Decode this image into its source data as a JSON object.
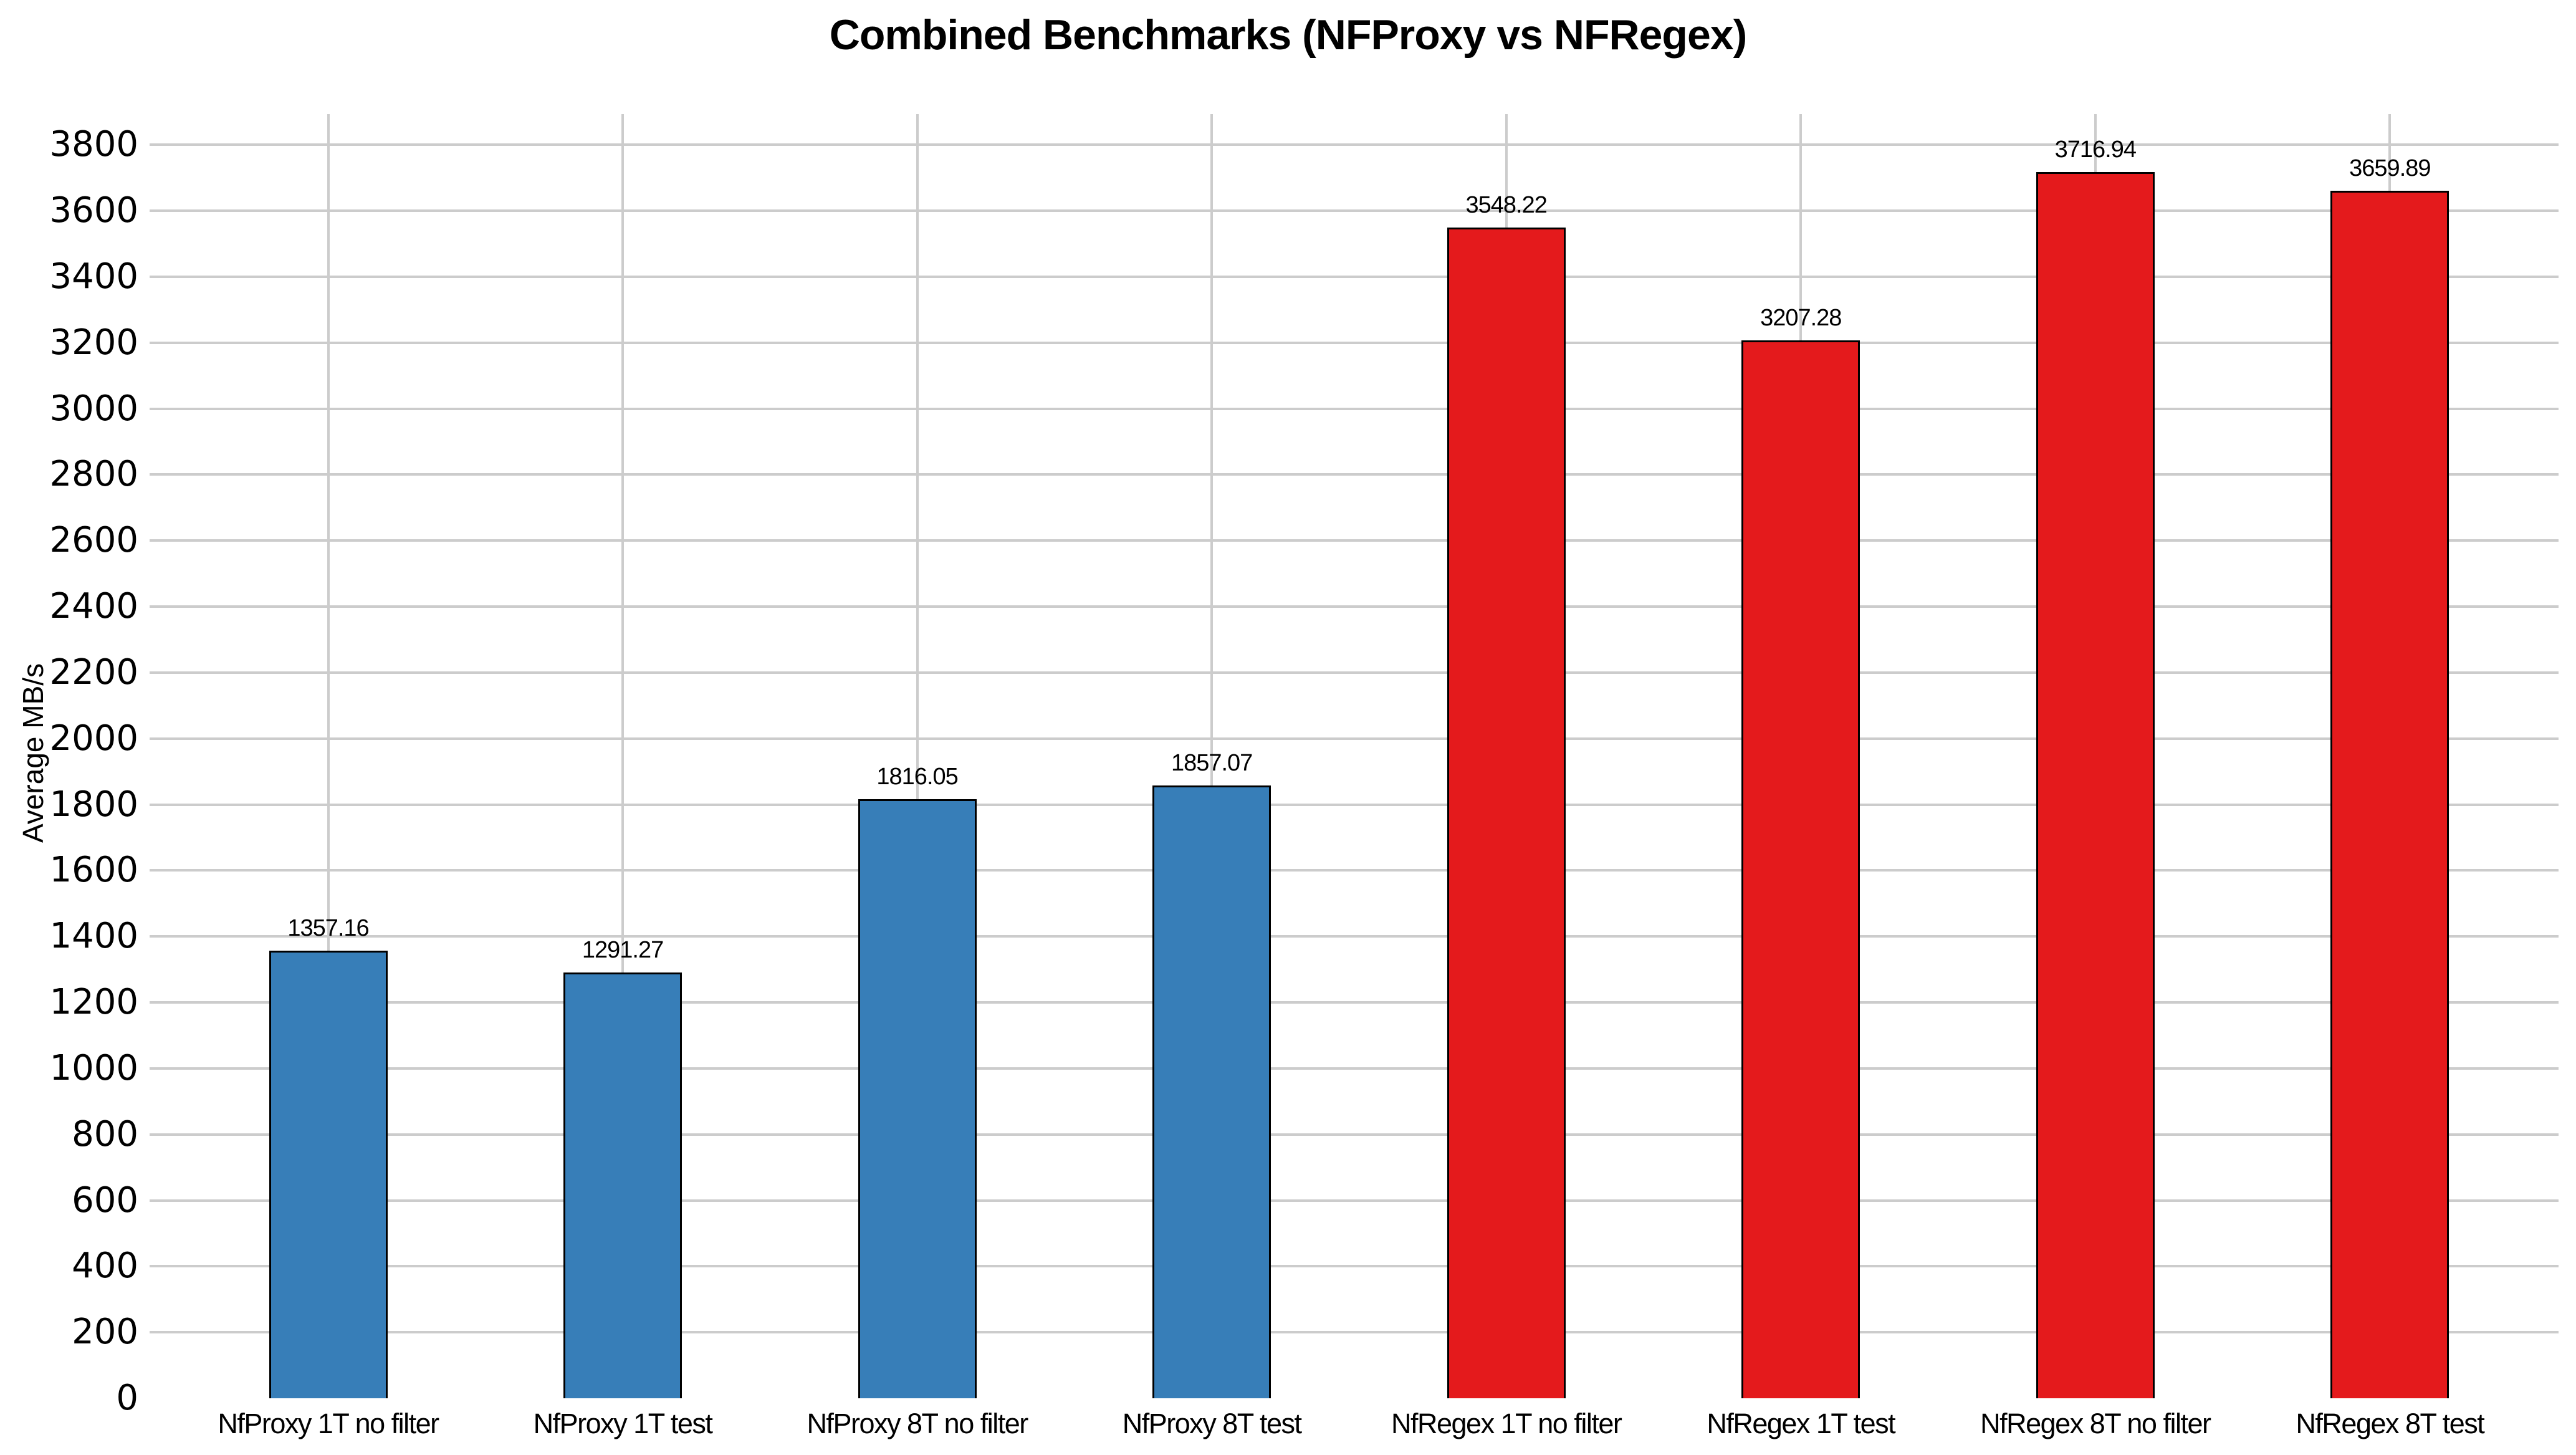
{
  "chart_data": {
    "type": "bar",
    "title": "Combined Benchmarks (NFProxy vs NFRegex)",
    "xlabel": "",
    "ylabel": "Average MB/s",
    "categories": [
      "NfProxy 1T no filter",
      "NfProxy 1T test",
      "NfProxy 8T no filter",
      "NfProxy 8T test",
      "NfRegex 1T no filter",
      "NfRegex 1T test",
      "NfRegex 8T no filter",
      "NfRegex 8T test"
    ],
    "values": [
      1357.16,
      1291.27,
      1816.05,
      1857.07,
      3548.22,
      3207.28,
      3716.94,
      3659.89
    ],
    "value_labels": [
      "1357.16",
      "1291.27",
      "1816.05",
      "1857.07",
      "3548.22",
      "3207.28",
      "3716.94",
      "3659.89"
    ],
    "bar_colors": [
      "#377eb8",
      "#377eb8",
      "#377eb8",
      "#377eb8",
      "#e41a1c",
      "#e41a1c",
      "#e41a1c",
      "#e41a1c"
    ],
    "groups": [
      {
        "name": "NfProxy",
        "color": "#377eb8"
      },
      {
        "name": "NfRegex",
        "color": "#e41a1c"
      }
    ],
    "yticks": [
      0,
      200,
      400,
      600,
      800,
      1000,
      1200,
      1400,
      1600,
      1800,
      2000,
      2200,
      2400,
      2600,
      2800,
      3000,
      3200,
      3400,
      3600,
      3800
    ],
    "ylim": [
      0,
      3893
    ],
    "grid": true,
    "grid_color": "#cccccc",
    "bar_edge_color": "#000000",
    "background_color": "#ffffff",
    "legend_position": "none"
  }
}
